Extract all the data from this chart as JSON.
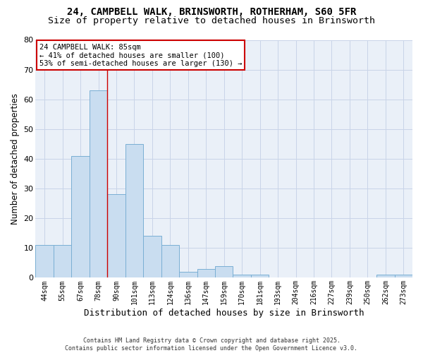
{
  "title_line1": "24, CAMPBELL WALK, BRINSWORTH, ROTHERHAM, S60 5FR",
  "title_line2": "Size of property relative to detached houses in Brinsworth",
  "xlabel": "Distribution of detached houses by size in Brinsworth",
  "ylabel": "Number of detached properties",
  "bar_labels": [
    "44sqm",
    "55sqm",
    "67sqm",
    "78sqm",
    "90sqm",
    "101sqm",
    "113sqm",
    "124sqm",
    "136sqm",
    "147sqm",
    "159sqm",
    "170sqm",
    "181sqm",
    "193sqm",
    "204sqm",
    "216sqm",
    "227sqm",
    "239sqm",
    "250sqm",
    "262sqm",
    "273sqm"
  ],
  "bar_values": [
    11,
    11,
    41,
    63,
    28,
    45,
    14,
    11,
    2,
    3,
    4,
    1,
    1,
    0,
    0,
    0,
    0,
    0,
    0,
    1,
    1
  ],
  "bar_color": "#c9ddf0",
  "bar_edge_color": "#7aafd4",
  "grid_color": "#c8d4e8",
  "bg_color": "#ffffff",
  "plot_bg_color": "#eaf0f8",
  "ylim": [
    0,
    80
  ],
  "yticks": [
    0,
    10,
    20,
    30,
    40,
    50,
    60,
    70,
    80
  ],
  "annotation_text": "24 CAMPBELL WALK: 85sqm\n← 41% of detached houses are smaller (100)\n53% of semi-detached houses are larger (130) →",
  "annotation_box_color": "#ffffff",
  "annotation_edge_color": "#cc0000",
  "footer_line1": "Contains HM Land Registry data © Crown copyright and database right 2025.",
  "footer_line2": "Contains public sector information licensed under the Open Government Licence v3.0.",
  "title_fontsize": 10,
  "subtitle_fontsize": 9.5
}
